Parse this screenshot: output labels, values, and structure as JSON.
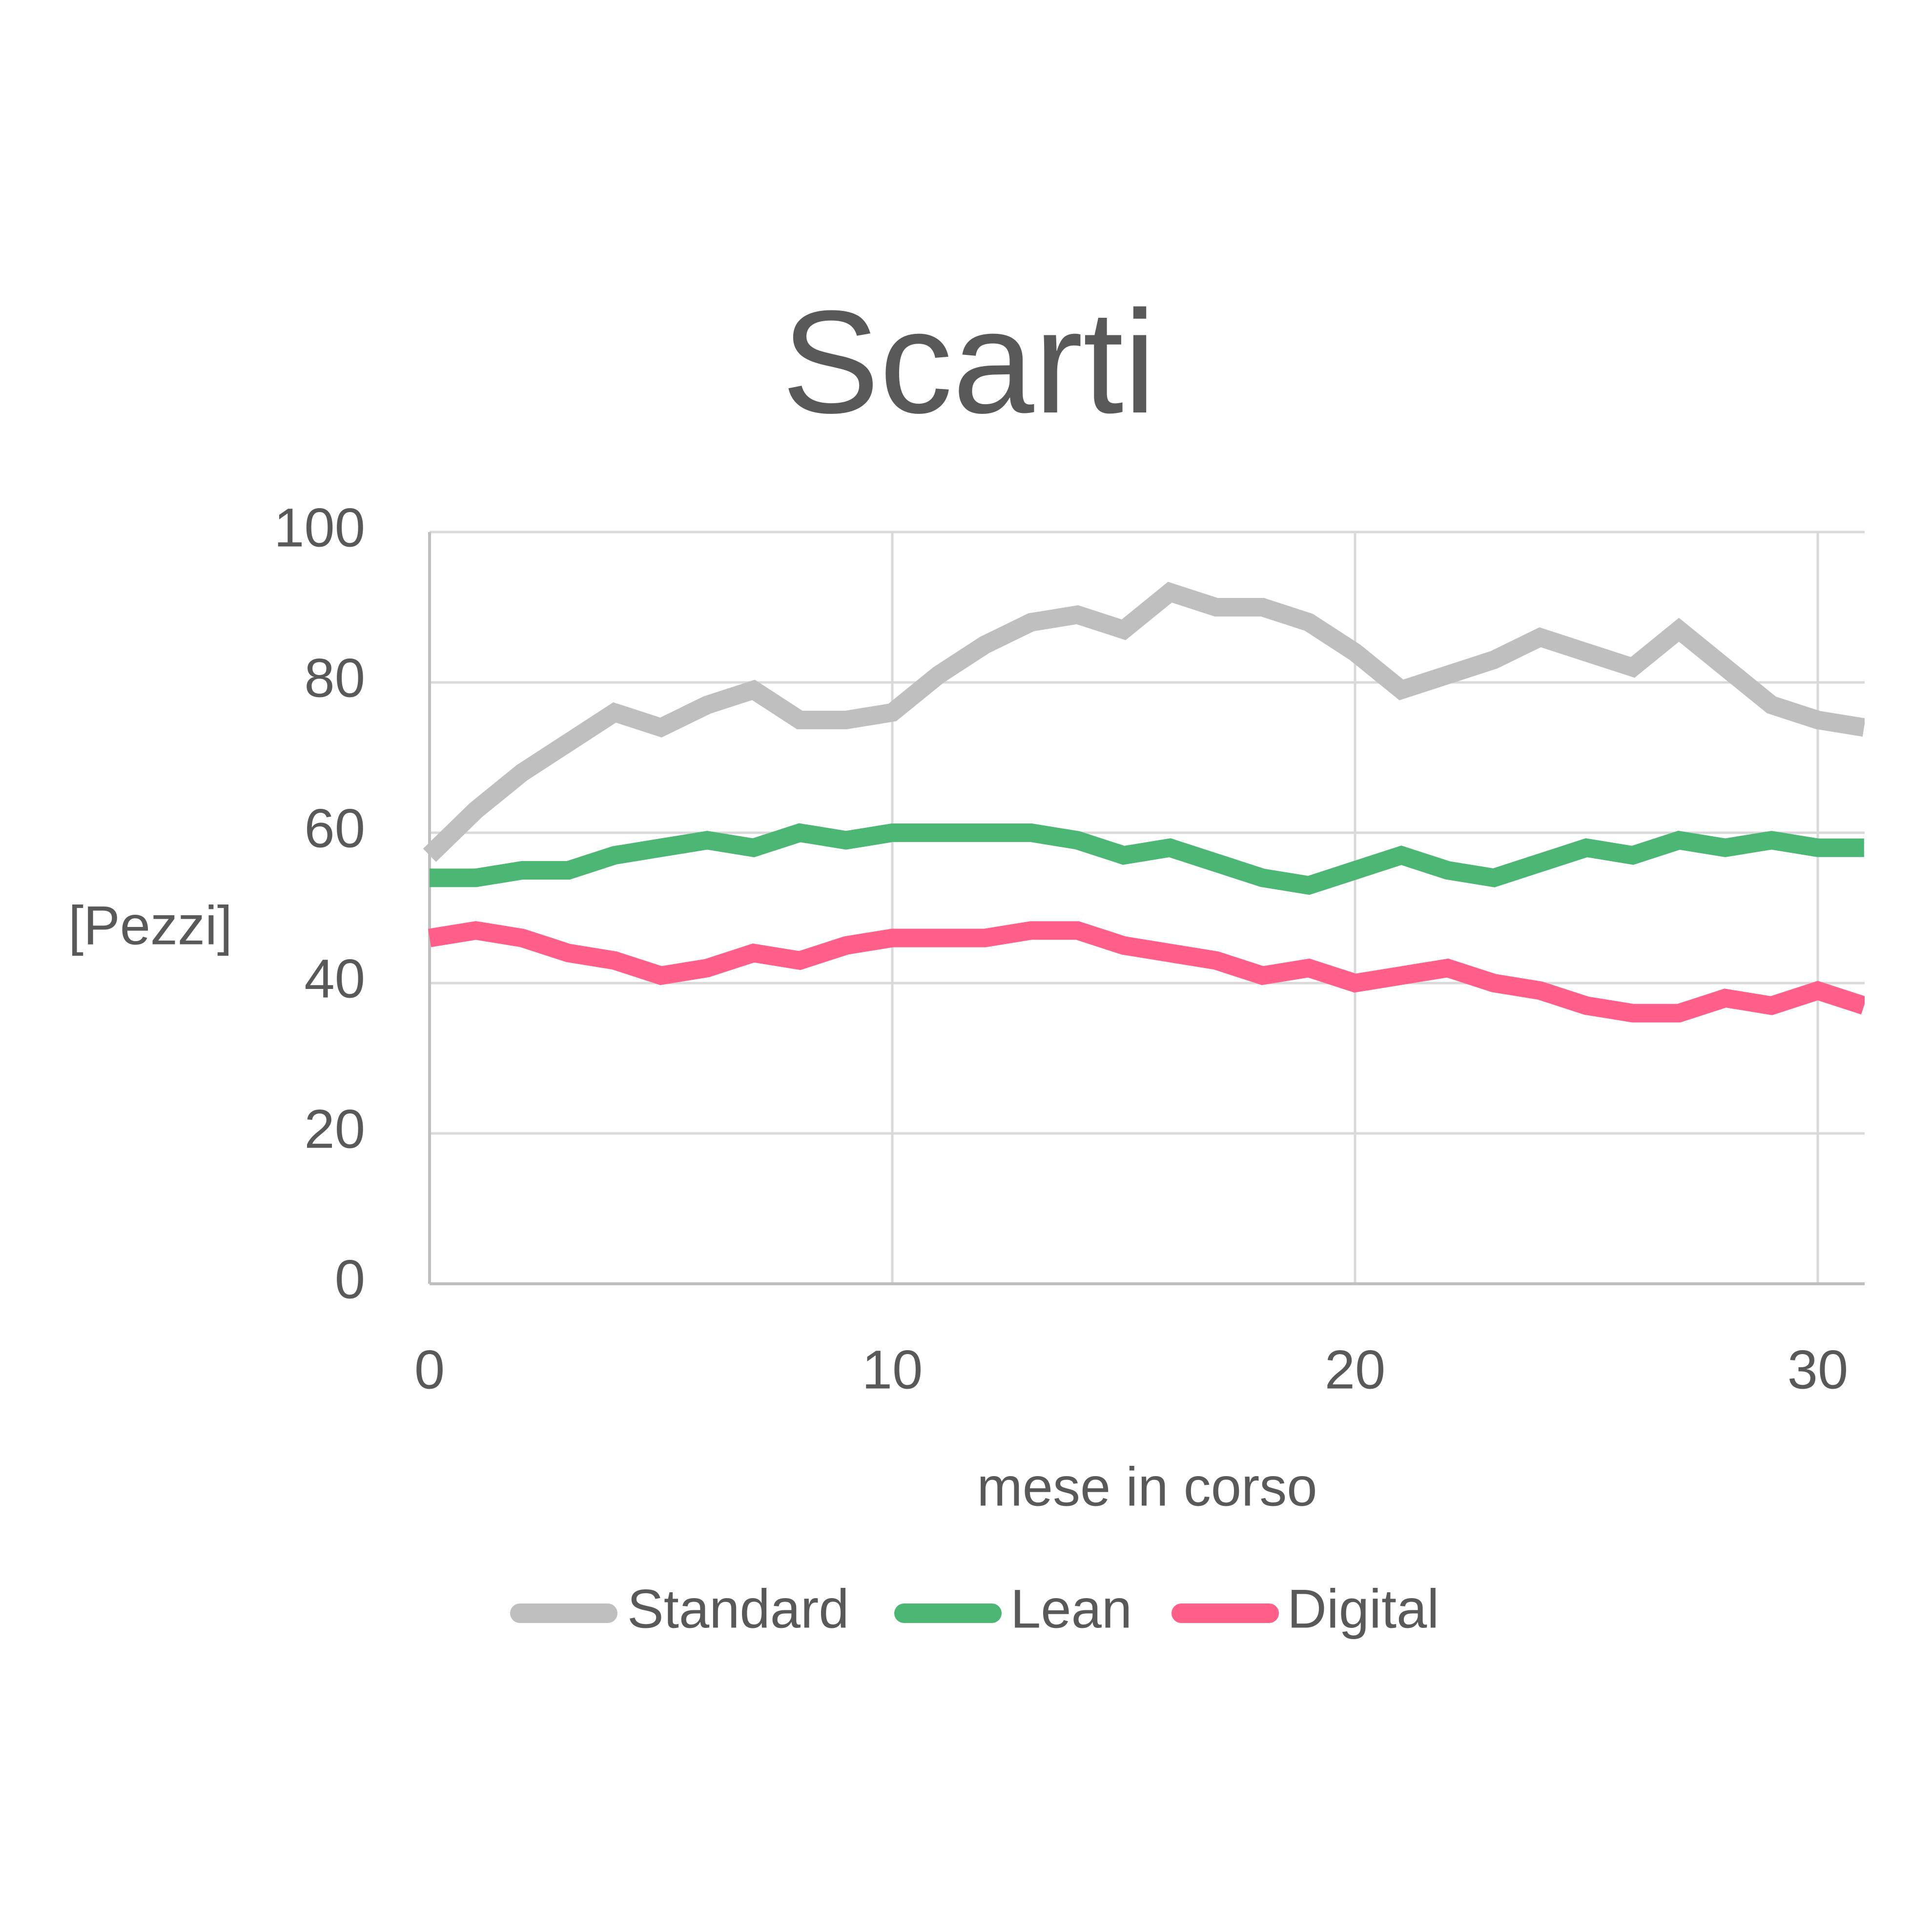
{
  "chart_data": {
    "type": "line",
    "title": "Scarti",
    "xlabel": "mese in corso",
    "ylabel": "[Pezzi]",
    "xlim": [
      0,
      31
    ],
    "ylim": [
      0,
      100
    ],
    "x_ticks": [
      0,
      10,
      20,
      30
    ],
    "y_ticks": [
      0,
      20,
      40,
      60,
      80,
      100
    ],
    "grid": true,
    "legend_position": "bottom",
    "x": [
      0,
      1,
      2,
      3,
      4,
      5,
      6,
      7,
      8,
      9,
      10,
      11,
      12,
      13,
      14,
      15,
      16,
      17,
      18,
      19,
      20,
      21,
      22,
      23,
      24,
      25,
      26,
      27,
      28,
      29,
      30,
      31
    ],
    "series": [
      {
        "name": "Standard",
        "color": "#bfbfbf",
        "values": [
          57,
          63,
          68,
          72,
          76,
          74,
          77,
          79,
          75,
          75,
          76,
          81,
          85,
          88,
          89,
          87,
          92,
          90,
          90,
          88,
          84,
          79,
          81,
          83,
          86,
          84,
          82,
          87,
          82,
          77,
          75,
          74
        ]
      },
      {
        "name": "Lean",
        "color": "#4cb674",
        "values": [
          54,
          54,
          55,
          55,
          57,
          58,
          59,
          58,
          60,
          59,
          60,
          60,
          60,
          60,
          59,
          57,
          58,
          56,
          54,
          53,
          55,
          57,
          55,
          54,
          56,
          58,
          57,
          59,
          58,
          59,
          58,
          58
        ]
      },
      {
        "name": "Digital",
        "color": "#ff5f89",
        "values": [
          46,
          47,
          46,
          44,
          43,
          41,
          42,
          44,
          43,
          45,
          46,
          46,
          46,
          47,
          47,
          45,
          44,
          43,
          41,
          42,
          40,
          41,
          42,
          40,
          39,
          37,
          36,
          36,
          38,
          37,
          39,
          37
        ]
      }
    ]
  }
}
